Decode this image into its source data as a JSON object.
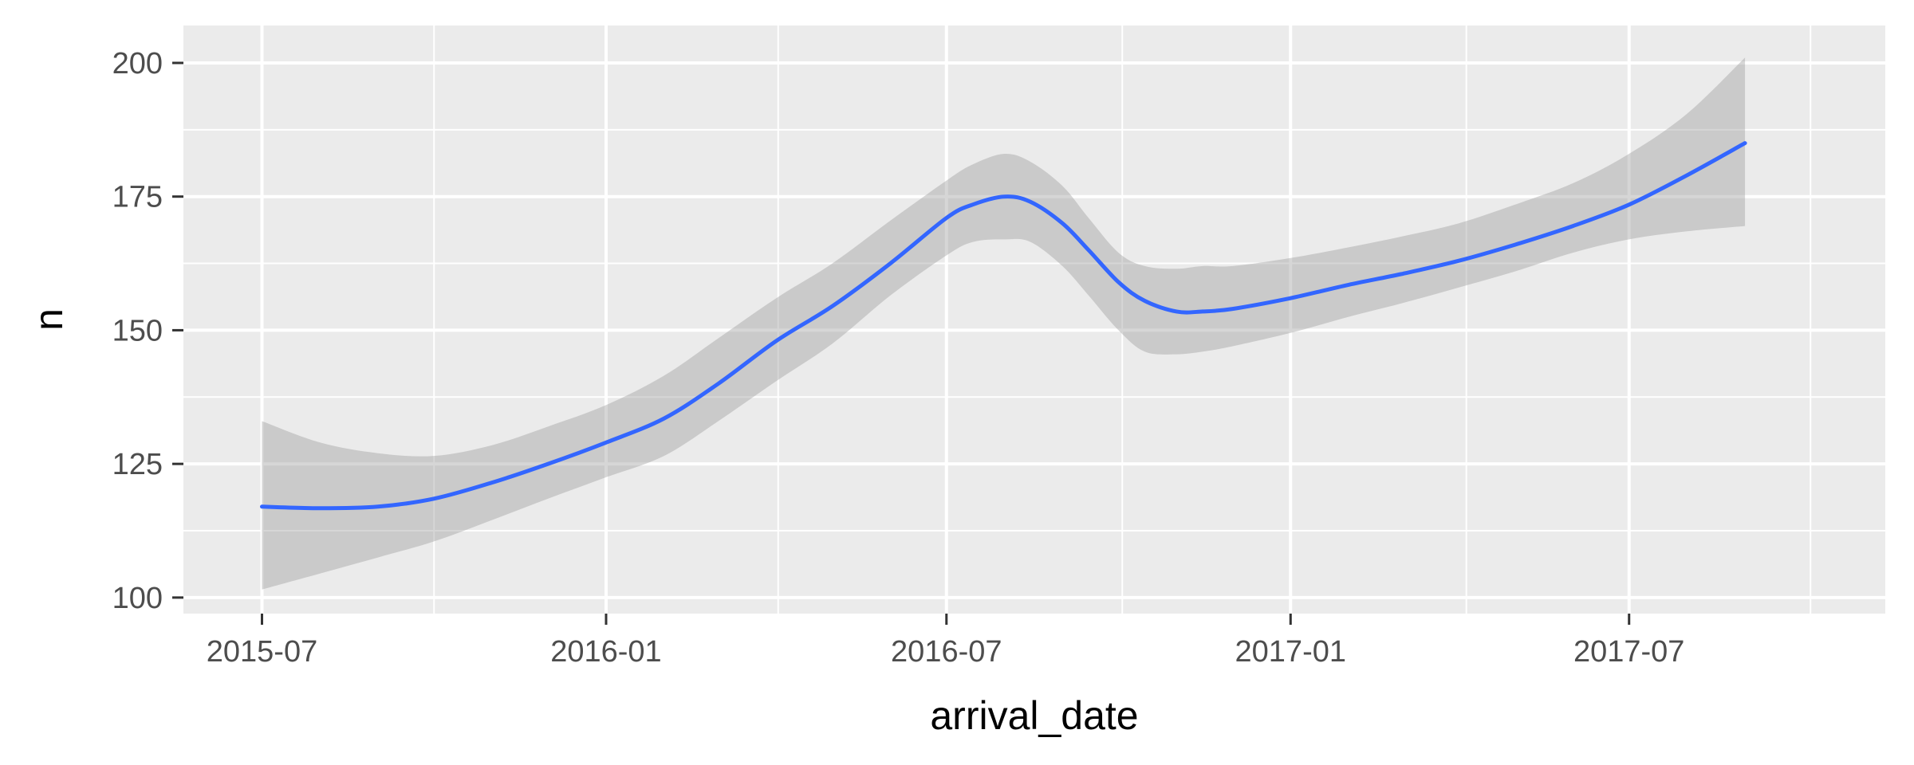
{
  "chart_data": {
    "type": "line",
    "xlabel": "arrival_date",
    "ylabel": "n",
    "x_ticks": [
      "2015-07",
      "2016-01",
      "2016-07",
      "2017-01",
      "2017-07"
    ],
    "y_ticks": [
      100,
      125,
      150,
      175,
      200
    ],
    "xlim": [
      "2015-05-20",
      "2017-11-15"
    ],
    "ylim": [
      97,
      207
    ],
    "grid": true,
    "legend": "none",
    "series": [
      {
        "x": [
          "2015-07-01",
          "2015-08-01",
          "2015-09-01",
          "2015-10-01",
          "2015-11-01",
          "2015-12-01",
          "2016-01-01",
          "2016-02-01",
          "2016-03-01",
          "2016-04-01",
          "2016-05-01",
          "2016-06-01",
          "2016-07-01",
          "2016-07-15",
          "2016-08-01",
          "2016-08-15",
          "2016-09-01",
          "2016-09-15",
          "2016-10-01",
          "2016-10-15",
          "2016-11-01",
          "2016-11-15",
          "2016-12-01",
          "2017-01-01",
          "2017-02-01",
          "2017-03-01",
          "2017-04-01",
          "2017-05-01",
          "2017-06-01",
          "2017-07-01",
          "2017-08-01",
          "2017-09-01"
        ],
        "y": [
          117,
          116.7,
          117,
          118.5,
          121.5,
          125,
          129,
          133.5,
          140,
          148,
          154.5,
          162.5,
          171,
          173.5,
          175,
          174,
          170,
          165,
          159,
          155.5,
          153.5,
          153.5,
          154,
          156,
          158.5,
          160.5,
          163,
          166,
          169.5,
          173.5,
          179,
          185
        ],
        "lower": [
          101.5,
          104.5,
          107.5,
          110.5,
          114.5,
          118.5,
          122.5,
          126.5,
          133,
          140.5,
          147.5,
          156.5,
          164,
          166.5,
          167,
          166.5,
          162,
          156.5,
          150,
          146,
          145.5,
          146,
          147,
          149.5,
          152.5,
          155,
          158,
          161,
          164.5,
          167,
          168.5,
          169.5
        ],
        "upper": [
          133,
          129,
          127,
          126.5,
          128.5,
          132,
          136,
          141.5,
          148.5,
          156,
          162.5,
          170.5,
          178,
          181,
          183,
          181.5,
          177,
          171,
          164.5,
          162,
          161.5,
          162,
          162,
          163.5,
          165.5,
          167.5,
          170,
          173.5,
          177.5,
          183,
          190.5,
          201
        ],
        "color": "#3366FF",
        "band_color": "#999999"
      }
    ]
  }
}
